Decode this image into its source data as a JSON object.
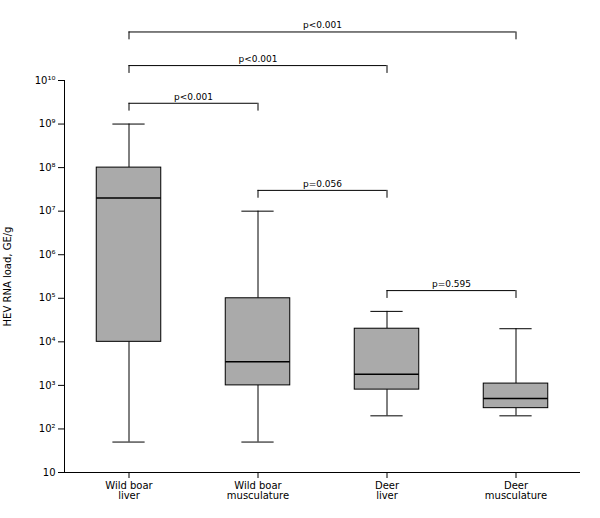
{
  "chart_data": {
    "type": "box",
    "categories": [
      "Wild boar\nliver",
      "Wild boar\nmusculature",
      "Deer\nliver",
      "Deer\nmusculature"
    ],
    "values": [
      {
        "whislo": 50,
        "q1": 10000,
        "med": 20000000,
        "q3": 100000000,
        "whishi": 1000000000
      },
      {
        "whislo": 50,
        "q1": 1000,
        "med": 3500,
        "q3": 100000,
        "whishi": 10000000
      },
      {
        "whislo": 200,
        "q1": 800,
        "med": 1800,
        "q3": 20000,
        "whishi": 50000
      },
      {
        "whislo": 200,
        "q1": 300,
        "med": 500,
        "q3": 1100,
        "whishi": 20000
      }
    ],
    "color": "#aaaaaa",
    "ylabel": "HEV RNA load, GE/g",
    "log": "y",
    "ylim": [
      10,
      10000000000
    ],
    "yticks": [
      10,
      {
        "value": 100,
        "label": "10²"
      },
      {
        "value": 1000,
        "label": "10³"
      },
      {
        "value": 10000,
        "label": "10⁴"
      },
      {
        "value": 100000,
        "label": "10⁵"
      },
      {
        "value": 1000000,
        "label": "10⁶"
      },
      {
        "value": 10000000,
        "label": "10⁷"
      },
      {
        "value": 100000000,
        "label": "10⁸"
      },
      {
        "value": 1000000000,
        "label": "10⁹"
      },
      {
        "value": 10000000000,
        "label": "10¹⁰"
      }
    ],
    "grid": false,
    "annotations": [
      {
        "x1": "Deer\nliver",
        "x2": "Deer\nmusculature",
        "y": 150000,
        "text": "p=0.595"
      },
      {
        "x1": "Wild boar\nmusculature",
        "x2": "Deer\nliver",
        "y": 30000000,
        "text": "p=0.056"
      },
      {
        "x1": "Wild boar\nliver",
        "x2": "Wild boar\nmusculature",
        "y": 3000000000,
        "text": "p<0.001"
      },
      {
        "x1": "Wild boar\nliver",
        "x2": "Deer\nliver",
        "y": 22000000000,
        "text": "p<0.001"
      },
      {
        "x1": "Wild boar\nliver",
        "x2": "Deer\nmusculature",
        "y": 130000000000,
        "text": "p<0.001"
      }
    ]
  }
}
